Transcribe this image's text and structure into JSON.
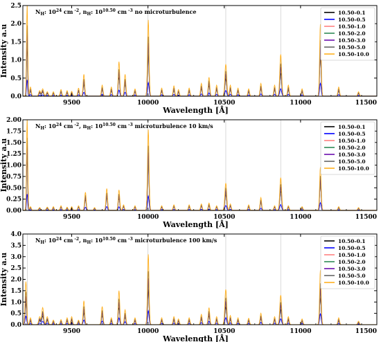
{
  "chart_data": [
    {
      "type": "line",
      "annotation_main": "N",
      "annotation_sub_h": "H",
      "annotation_exp": "24",
      "annotation_unit_cm": " cm",
      "annotation_minus2": " -2",
      "annotation_n": ", n",
      "annotation_sub_h2": "H",
      "annotation_colon": ": 10",
      "annotation_exp2": "10.50",
      "annotation_unit_cm3": " cm",
      "annotation_minus3": " -3",
      "annotation_tail": "no microturbulence",
      "xlabel": "Wavelength [Å]",
      "ylabel": "Intensity a.u",
      "xlim": [
        9180,
        11500
      ],
      "ylim": [
        0,
        2.5
      ],
      "xticks": [
        9500,
        10000,
        10500,
        11000,
        11500
      ],
      "xtick_labels": [
        "9500",
        "10000",
        "10500",
        "11000",
        "11500"
      ],
      "yticks": [
        0.0,
        0.5,
        1.0,
        1.5,
        2.0,
        2.5
      ],
      "ytick_labels": [
        "0.0",
        "0.5",
        "1.0",
        "1.5",
        "2.0",
        "2.5"
      ],
      "legend_placement": "top-right",
      "vlines": [
        9210,
        10000,
        10510,
        10870
      ],
      "peaks": [
        {
          "x": 9208,
          "h": 2.5,
          "w": 4
        },
        {
          "x": 9230,
          "h": 0.25,
          "w": 5
        },
        {
          "x": 9290,
          "h": 0.15,
          "w": 6
        },
        {
          "x": 9310,
          "h": 0.2,
          "w": 6
        },
        {
          "x": 9340,
          "h": 0.12,
          "w": 6
        },
        {
          "x": 9380,
          "h": 0.12,
          "w": 5
        },
        {
          "x": 9430,
          "h": 0.18,
          "w": 5
        },
        {
          "x": 9470,
          "h": 0.15,
          "w": 5
        },
        {
          "x": 9500,
          "h": 0.13,
          "w": 5
        },
        {
          "x": 9545,
          "h": 0.22,
          "w": 5
        },
        {
          "x": 9580,
          "h": 0.6,
          "w": 5
        },
        {
          "x": 9700,
          "h": 0.3,
          "w": 5
        },
        {
          "x": 9760,
          "h": 0.25,
          "w": 5
        },
        {
          "x": 9810,
          "h": 0.95,
          "w": 5
        },
        {
          "x": 9850,
          "h": 0.6,
          "w": 5
        },
        {
          "x": 9915,
          "h": 0.2,
          "w": 5
        },
        {
          "x": 10002,
          "h": 2.1,
          "w": 5
        },
        {
          "x": 10090,
          "h": 0.22,
          "w": 5
        },
        {
          "x": 10170,
          "h": 0.28,
          "w": 5
        },
        {
          "x": 10200,
          "h": 0.18,
          "w": 5
        },
        {
          "x": 10270,
          "h": 0.22,
          "w": 5
        },
        {
          "x": 10350,
          "h": 0.35,
          "w": 5
        },
        {
          "x": 10400,
          "h": 0.52,
          "w": 5
        },
        {
          "x": 10450,
          "h": 0.3,
          "w": 5
        },
        {
          "x": 10510,
          "h": 0.88,
          "w": 6
        },
        {
          "x": 10540,
          "h": 0.3,
          "w": 5
        },
        {
          "x": 10590,
          "h": 0.22,
          "w": 5
        },
        {
          "x": 10660,
          "h": 0.2,
          "w": 5
        },
        {
          "x": 10740,
          "h": 0.35,
          "w": 5
        },
        {
          "x": 10830,
          "h": 0.3,
          "w": 5
        },
        {
          "x": 10870,
          "h": 1.15,
          "w": 6
        },
        {
          "x": 10920,
          "h": 0.3,
          "w": 5
        },
        {
          "x": 11010,
          "h": 0.2,
          "w": 5
        },
        {
          "x": 11130,
          "h": 1.98,
          "w": 5
        },
        {
          "x": 11250,
          "h": 0.25,
          "w": 5
        },
        {
          "x": 11380,
          "h": 0.12,
          "w": 5
        }
      ],
      "series": [
        {
          "name": "10.50-0.1",
          "color": "#000000",
          "scale": 0.55
        },
        {
          "name": "10.50-0.5",
          "color": "#0000ff",
          "scale": 0.18
        },
        {
          "name": "10.50-1.0",
          "color": "#ff8080",
          "scale": 0.62
        },
        {
          "name": "10.50-2.0",
          "color": "#2e8b57",
          "scale": 0.66
        },
        {
          "name": "10.50-3.0",
          "color": "#6a0dad",
          "scale": 0.7
        },
        {
          "name": "10.50-5.0",
          "color": "#666666",
          "scale": 0.78
        },
        {
          "name": "10.50-10.0",
          "color": "#ffb020",
          "scale": 1.0
        }
      ]
    },
    {
      "type": "line",
      "annotation_main": "N",
      "annotation_sub_h": "H",
      "annotation_exp": "24",
      "annotation_unit_cm": " cm",
      "annotation_minus2": " -2",
      "annotation_n": ", n",
      "annotation_sub_h2": "H",
      "annotation_colon": ": 10",
      "annotation_exp2": "10.50",
      "annotation_unit_cm3": " cm",
      "annotation_minus3": " -3",
      "annotation_tail": "microturbulence 10 km/s",
      "xlabel": "Wavelength [Å]",
      "ylabel": "Intensity a.u",
      "xlim": [
        9180,
        11500
      ],
      "ylim": [
        0,
        2.0
      ],
      "xticks": [
        9500,
        10000,
        10500,
        11000,
        11500
      ],
      "xtick_labels": [
        "9500",
        "10000",
        "10500",
        "11000",
        "11500"
      ],
      "yticks": [
        0.0,
        0.25,
        0.5,
        0.75,
        1.0,
        1.25,
        1.5,
        1.75,
        2.0
      ],
      "ytick_labels": [
        "0.00",
        "0.25",
        "0.50",
        "0.75",
        "1.00",
        "1.25",
        "1.50",
        "1.75",
        "2.00"
      ],
      "legend_placement": "top-right",
      "vlines": [
        9210,
        10000,
        10510,
        10870
      ],
      "peaks": [
        {
          "x": 9208,
          "h": 2.0,
          "w": 4
        },
        {
          "x": 9230,
          "h": 0.08,
          "w": 5
        },
        {
          "x": 9290,
          "h": 0.06,
          "w": 6
        },
        {
          "x": 9340,
          "h": 0.07,
          "w": 6
        },
        {
          "x": 9380,
          "h": 0.08,
          "w": 5
        },
        {
          "x": 9430,
          "h": 0.1,
          "w": 5
        },
        {
          "x": 9470,
          "h": 0.07,
          "w": 5
        },
        {
          "x": 9500,
          "h": 0.08,
          "w": 5
        },
        {
          "x": 9545,
          "h": 0.1,
          "w": 5
        },
        {
          "x": 9590,
          "h": 0.4,
          "w": 5
        },
        {
          "x": 9650,
          "h": 0.06,
          "w": 5
        },
        {
          "x": 9730,
          "h": 0.48,
          "w": 5
        },
        {
          "x": 9810,
          "h": 0.45,
          "w": 5
        },
        {
          "x": 9840,
          "h": 0.12,
          "w": 5
        },
        {
          "x": 9915,
          "h": 0.1,
          "w": 5
        },
        {
          "x": 10002,
          "h": 1.78,
          "w": 5
        },
        {
          "x": 10090,
          "h": 0.1,
          "w": 5
        },
        {
          "x": 10170,
          "h": 0.12,
          "w": 5
        },
        {
          "x": 10270,
          "h": 0.12,
          "w": 5
        },
        {
          "x": 10350,
          "h": 0.14,
          "w": 5
        },
        {
          "x": 10400,
          "h": 0.16,
          "w": 5
        },
        {
          "x": 10450,
          "h": 0.1,
          "w": 5
        },
        {
          "x": 10510,
          "h": 0.6,
          "w": 6
        },
        {
          "x": 10540,
          "h": 0.14,
          "w": 5
        },
        {
          "x": 10660,
          "h": 0.12,
          "w": 5
        },
        {
          "x": 10740,
          "h": 0.28,
          "w": 5
        },
        {
          "x": 10830,
          "h": 0.1,
          "w": 5
        },
        {
          "x": 10870,
          "h": 0.72,
          "w": 6
        },
        {
          "x": 10920,
          "h": 0.1,
          "w": 5
        },
        {
          "x": 11010,
          "h": 0.08,
          "w": 5
        },
        {
          "x": 11130,
          "h": 0.95,
          "w": 5
        },
        {
          "x": 11250,
          "h": 0.08,
          "w": 5
        },
        {
          "x": 11380,
          "h": 0.06,
          "w": 5
        }
      ],
      "series": [
        {
          "name": "10.50-0.1",
          "color": "#000000",
          "scale": 0.6
        },
        {
          "name": "10.50-0.5",
          "color": "#0000ff",
          "scale": 0.18
        },
        {
          "name": "10.50-1.0",
          "color": "#ff8080",
          "scale": 0.64
        },
        {
          "name": "10.50-2.0",
          "color": "#2e8b57",
          "scale": 0.68
        },
        {
          "name": "10.50-3.0",
          "color": "#6a0dad",
          "scale": 0.72
        },
        {
          "name": "10.50-5.0",
          "color": "#666666",
          "scale": 0.8
        },
        {
          "name": "10.50-10.0",
          "color": "#ffb020",
          "scale": 1.0
        }
      ]
    },
    {
      "type": "line",
      "annotation_main": "N",
      "annotation_sub_h": "H",
      "annotation_exp": "24",
      "annotation_unit_cm": " cm",
      "annotation_minus2": " -2",
      "annotation_n": ", n",
      "annotation_sub_h2": "H",
      "annotation_colon": ": 10",
      "annotation_exp2": "10.50",
      "annotation_unit_cm3": " cm",
      "annotation_minus3": " -3",
      "annotation_tail": "microturbulence 100 km/s",
      "xlabel": "Wavelength [Å]",
      "ylabel": "Intensity a.u",
      "xlim": [
        9180,
        11500
      ],
      "ylim": [
        0,
        4.0
      ],
      "xticks": [
        9500,
        10000,
        10500,
        11000,
        11500
      ],
      "xtick_labels": [
        "9500",
        "10000",
        "10500",
        "11000",
        "11500"
      ],
      "yticks": [
        0.0,
        0.5,
        1.0,
        1.5,
        2.0,
        2.5,
        3.0,
        3.5,
        4.0
      ],
      "ytick_labels": [
        "0.0",
        "0.5",
        "1.0",
        "1.5",
        "2.0",
        "2.5",
        "3.0",
        "3.5",
        "4.0"
      ],
      "legend_placement": "top-right",
      "vlines": [
        9210,
        10000,
        10510,
        10870
      ],
      "peaks": [
        {
          "x": 9200,
          "h": 1.9,
          "w": 5
        },
        {
          "x": 9230,
          "h": 0.3,
          "w": 5
        },
        {
          "x": 9290,
          "h": 0.35,
          "w": 6
        },
        {
          "x": 9310,
          "h": 0.75,
          "w": 6
        },
        {
          "x": 9340,
          "h": 0.35,
          "w": 6
        },
        {
          "x": 9380,
          "h": 0.2,
          "w": 5
        },
        {
          "x": 9430,
          "h": 0.22,
          "w": 5
        },
        {
          "x": 9470,
          "h": 0.3,
          "w": 5
        },
        {
          "x": 9500,
          "h": 0.35,
          "w": 5
        },
        {
          "x": 9545,
          "h": 0.2,
          "w": 5
        },
        {
          "x": 9580,
          "h": 1.05,
          "w": 5
        },
        {
          "x": 9700,
          "h": 0.8,
          "w": 5
        },
        {
          "x": 9760,
          "h": 0.3,
          "w": 5
        },
        {
          "x": 9810,
          "h": 1.5,
          "w": 5
        },
        {
          "x": 9850,
          "h": 0.65,
          "w": 5
        },
        {
          "x": 9915,
          "h": 0.3,
          "w": 5
        },
        {
          "x": 10002,
          "h": 3.1,
          "w": 5
        },
        {
          "x": 10090,
          "h": 0.3,
          "w": 5
        },
        {
          "x": 10170,
          "h": 0.35,
          "w": 5
        },
        {
          "x": 10200,
          "h": 0.25,
          "w": 5
        },
        {
          "x": 10270,
          "h": 0.3,
          "w": 5
        },
        {
          "x": 10350,
          "h": 0.45,
          "w": 5
        },
        {
          "x": 10400,
          "h": 0.75,
          "w": 5
        },
        {
          "x": 10450,
          "h": 0.35,
          "w": 5
        },
        {
          "x": 10510,
          "h": 1.55,
          "w": 6
        },
        {
          "x": 10540,
          "h": 0.4,
          "w": 5
        },
        {
          "x": 10590,
          "h": 0.3,
          "w": 5
        },
        {
          "x": 10660,
          "h": 0.28,
          "w": 5
        },
        {
          "x": 10740,
          "h": 0.5,
          "w": 5
        },
        {
          "x": 10830,
          "h": 0.35,
          "w": 5
        },
        {
          "x": 10870,
          "h": 1.3,
          "w": 6
        },
        {
          "x": 10920,
          "h": 0.35,
          "w": 5
        },
        {
          "x": 11010,
          "h": 0.25,
          "w": 5
        },
        {
          "x": 11130,
          "h": 2.4,
          "w": 5
        },
        {
          "x": 11250,
          "h": 0.3,
          "w": 5
        },
        {
          "x": 11380,
          "h": 0.15,
          "w": 5
        }
      ],
      "series": [
        {
          "name": "10.50-0.1",
          "color": "#000000",
          "scale": 0.5
        },
        {
          "name": "10.50-0.5",
          "color": "#0000ff",
          "scale": 0.2
        },
        {
          "name": "10.50-1.0",
          "color": "#ff8080",
          "scale": 0.58
        },
        {
          "name": "10.50-2.0",
          "color": "#2e8b57",
          "scale": 0.62
        },
        {
          "name": "10.50-3.0",
          "color": "#6a0dad",
          "scale": 0.66
        },
        {
          "name": "10.50-5.0",
          "color": "#666666",
          "scale": 0.76
        },
        {
          "name": "10.50-10.0",
          "color": "#ffb020",
          "scale": 1.0
        }
      ]
    }
  ]
}
